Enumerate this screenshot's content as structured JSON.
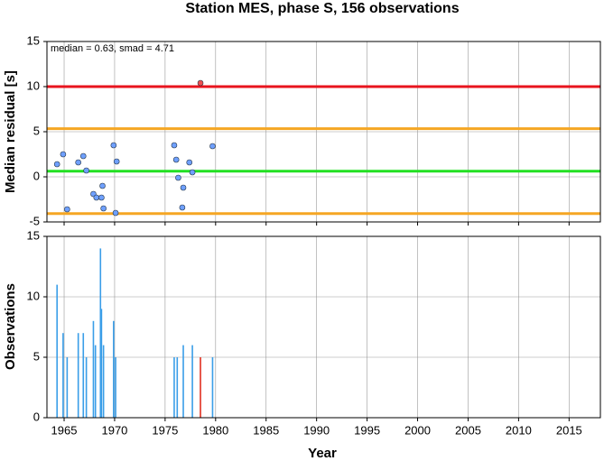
{
  "chart_data": [
    {
      "type": "scatter",
      "title": "Station MES, phase S, 156 observations",
      "ylabel": "Median residual [s]",
      "annotation": "median = 0.63, smad = 4.71",
      "x": [
        1964.3,
        1964.9,
        1965.3,
        1966.4,
        1966.9,
        1967.2,
        1967.9,
        1968.2,
        1968.7,
        1968.8,
        1968.9,
        1969.9,
        1970.2,
        1970.1,
        1975.9,
        1976.1,
        1976.3,
        1976.8,
        1976.7,
        1977.4,
        1977.7,
        1978.5,
        1979.7
      ],
      "values": [
        1.4,
        2.5,
        -3.6,
        1.6,
        2.3,
        0.7,
        -1.9,
        -2.3,
        -2.3,
        -1.0,
        -3.5,
        3.5,
        1.7,
        -4.0,
        3.5,
        1.9,
        -0.1,
        -1.2,
        -3.4,
        1.6,
        0.5,
        10.4,
        3.4
      ],
      "colors": [
        "#6fa0ff",
        "#6fa0ff",
        "#6fa0ff",
        "#6fa0ff",
        "#6fa0ff",
        "#6fa0ff",
        "#6fa0ff",
        "#6fa0ff",
        "#6fa0ff",
        "#6fa0ff",
        "#6fa0ff",
        "#6fa0ff",
        "#6fa0ff",
        "#6fa0ff",
        "#6fa0ff",
        "#6fa0ff",
        "#6fa0ff",
        "#6fa0ff",
        "#6fa0ff",
        "#6fa0ff",
        "#6fa0ff",
        "#f05050",
        "#6fa0ff"
      ],
      "hlines": [
        {
          "value": 10,
          "color": "#e8141e"
        },
        {
          "value": 5.34,
          "color": "#f5a623"
        },
        {
          "value": 0.63,
          "color": "#22e022"
        },
        {
          "value": -4.08,
          "color": "#f5a623"
        }
      ],
      "xlim": [
        1963.3,
        2018.1
      ],
      "xticks": [
        1965,
        1970,
        1975,
        1980,
        1985,
        1990,
        1995,
        2000,
        2005,
        2010,
        2015
      ],
      "xtick_labels": false,
      "ylim": [
        -5,
        15
      ],
      "yticks": [
        15,
        10,
        5,
        0,
        -5
      ],
      "grid": true
    },
    {
      "type": "bar",
      "ylabel": "Observations",
      "xlabel": "Year",
      "x": [
        1964.3,
        1964.9,
        1965.3,
        1966.4,
        1966.9,
        1967.2,
        1967.9,
        1968.1,
        1968.6,
        1968.7,
        1968.9,
        1969.9,
        1970.1,
        1975.9,
        1976.2,
        1976.8,
        1977.7,
        1978.5,
        1979.7
      ],
      "values": [
        11,
        7,
        5,
        7,
        7,
        5,
        8,
        6,
        14,
        9,
        6,
        8,
        5,
        5,
        5,
        6,
        6,
        5,
        5
      ],
      "colors": [
        "#3a9ee8",
        "#3a9ee8",
        "#3a9ee8",
        "#3a9ee8",
        "#3a9ee8",
        "#3a9ee8",
        "#3a9ee8",
        "#3a9ee8",
        "#3a9ee8",
        "#3a9ee8",
        "#3a9ee8",
        "#3a9ee8",
        "#3a9ee8",
        "#3a9ee8",
        "#3a9ee8",
        "#3a9ee8",
        "#3a9ee8",
        "#e03020",
        "#3a9ee8"
      ],
      "xlim": [
        1963.3,
        2018.1
      ],
      "xticks": [
        1965,
        1970,
        1975,
        1980,
        1985,
        1990,
        1995,
        2000,
        2005,
        2010,
        2015
      ],
      "xtick_labels": true,
      "ylim": [
        0,
        15
      ],
      "yticks": [
        15,
        10,
        5,
        0
      ],
      "grid": true
    }
  ]
}
